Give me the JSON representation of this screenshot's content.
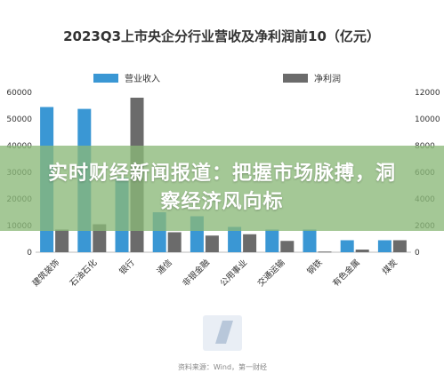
{
  "chart_data": {
    "type": "bar",
    "title": "2023Q3上市央企分行业营收及净利润前10（亿元）",
    "categories": [
      "建筑装饰",
      "石油石化",
      "银行",
      "通信",
      "非银金融",
      "公用事业",
      "交通运输",
      "钢铁",
      "有色金属",
      "煤炭"
    ],
    "series": [
      {
        "name": "营业收入",
        "axis": "left",
        "color": "#3a97d4",
        "values": [
          54500,
          53800,
          28000,
          15000,
          13500,
          9500,
          8500,
          8500,
          4500,
          4500
        ]
      },
      {
        "name": "净利润",
        "axis": "right",
        "color": "#6b6b6b",
        "values": [
          1700,
          2100,
          11600,
          1500,
          1250,
          1350,
          850,
          50,
          200,
          900
        ]
      }
    ],
    "yleft": {
      "min": 0,
      "max": 60000,
      "ticks": [
        "0",
        "10000",
        "20000",
        "30000",
        "40000",
        "50000",
        "60000"
      ]
    },
    "yright": {
      "min": 0,
      "max": 12000,
      "ticks": [
        "0",
        "2000",
        "4000",
        "6000",
        "8000",
        "10000",
        "12000"
      ]
    },
    "legend": "top",
    "grid": false,
    "source": "资料来源：Wind，第一财经"
  },
  "overlay": {
    "headline": "实时财经新闻报道：把握市场脉搏，洞察经济风向标"
  }
}
